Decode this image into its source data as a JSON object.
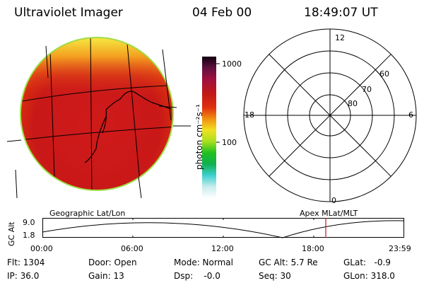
{
  "header": {
    "instrument": "Ultraviolet Imager",
    "date": "04 Feb 00",
    "time": "18:49:07 UT"
  },
  "colorbar": {
    "unit_label": "photon cm⁻²s⁻¹",
    "tick_1000": "1000",
    "tick_100": "100"
  },
  "polar_plot": {
    "mlt_labels": {
      "top": "12",
      "left": "18",
      "right": "6",
      "bottom": "0"
    },
    "lat_labels": [
      "60",
      "70",
      "80"
    ]
  },
  "coords": {
    "geo_label": "Geographic Lat/Lon",
    "apex_label": "Apex MLat/MLT"
  },
  "altitude_plot": {
    "axis_label": "GC Alt",
    "y_max": "9.0",
    "y_min": "1.8",
    "x_ticks": [
      "00:00",
      "06:00",
      "12:00",
      "18:00",
      "23:59"
    ],
    "marker_color": "#c8102e"
  },
  "info": {
    "flt": "Flt: 1304",
    "ip": "IP: 36.0",
    "door": "Door: Open",
    "gain": "Gain: 13",
    "mode": "Mode: Normal",
    "dsp": "Dsp:    -0.0",
    "gc_alt": "GC Alt: 5.7 Re",
    "seq": "Seq: 30",
    "glat": "GLat:   -0.9",
    "glon": "GLon: 318.0"
  }
}
